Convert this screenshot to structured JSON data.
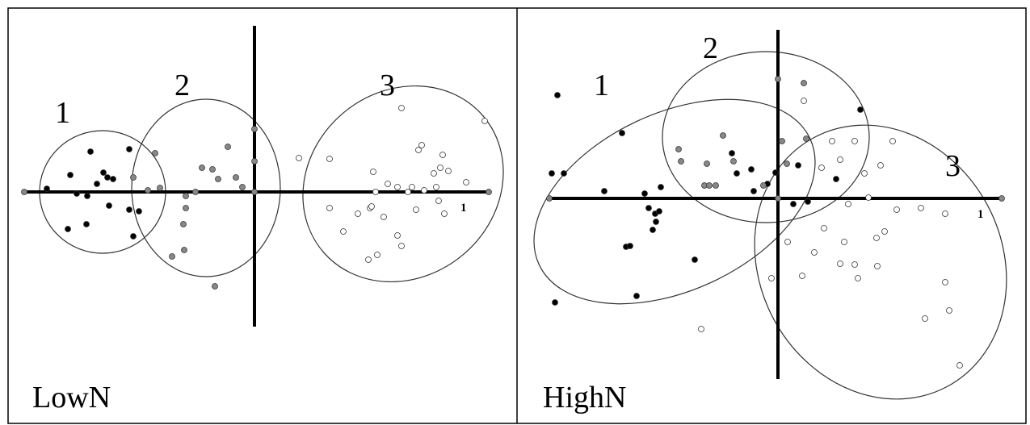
{
  "panels": [
    {
      "label": "LowN",
      "clusters": [
        "1",
        "2",
        "3"
      ],
      "axis_label": "1"
    },
    {
      "label": "HighN",
      "clusters": [
        "1",
        "2",
        "3"
      ],
      "axis_label": "1"
    }
  ]
}
